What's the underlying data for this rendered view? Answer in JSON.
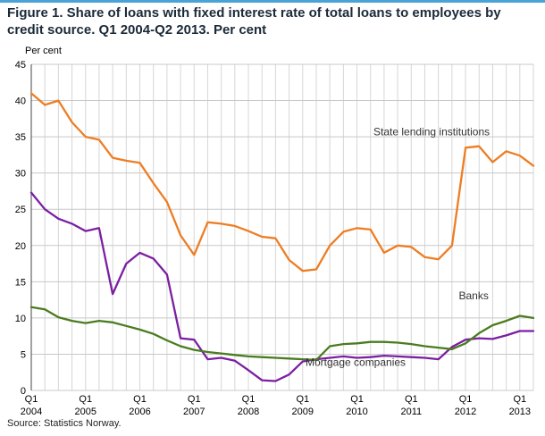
{
  "page": {
    "title": "Figure 1. Share of loans with fixed interest rate of total loans to employees by credit source. Q1 2004-Q2 2013. Per cent",
    "source": "Source: Statistics Norway."
  },
  "colors": {
    "accent_bar": "#4aa3d6",
    "title_text": "#1b2a38",
    "grid_vertical": "#d6d6d6",
    "grid_horizontal": "#c8c8c8",
    "axis": "#444444",
    "tick_text": "#000000",
    "annotation_text": "#333333"
  },
  "chart_data": {
    "type": "line",
    "title": "Figure 1. Share of loans with fixed interest rate of total loans to employees by credit source. Q1 2004-Q2 2013. Per cent",
    "ylabel": "Per cent",
    "ylim": [
      0,
      45
    ],
    "yticks": [
      0,
      5,
      10,
      15,
      20,
      25,
      30,
      35,
      40,
      45
    ],
    "grid": true,
    "n_points": 38,
    "x_description": "Quarterly, Q1 2004 through Q2 2013",
    "x_ticks": [
      {
        "index": 0,
        "quarter": "Q1",
        "year": "2004"
      },
      {
        "index": 4,
        "quarter": "Q1",
        "year": "2005"
      },
      {
        "index": 8,
        "quarter": "Q1",
        "year": "2006"
      },
      {
        "index": 12,
        "quarter": "Q1",
        "year": "2007"
      },
      {
        "index": 16,
        "quarter": "Q1",
        "year": "2008"
      },
      {
        "index": 20,
        "quarter": "Q1",
        "year": "2009"
      },
      {
        "index": 24,
        "quarter": "Q1",
        "year": "2010"
      },
      {
        "index": 28,
        "quarter": "Q1",
        "year": "2011"
      },
      {
        "index": 32,
        "quarter": "Q1",
        "year": "2012"
      },
      {
        "index": 36,
        "quarter": "Q1",
        "year": "2013"
      }
    ],
    "series": [
      {
        "name": "State lending institutions",
        "color": "#ee7d23",
        "values": [
          41.0,
          39.4,
          40.0,
          37.0,
          35.0,
          34.6,
          32.1,
          31.7,
          31.4,
          28.6,
          26.0,
          21.4,
          18.7,
          23.2,
          23.0,
          22.7,
          22.0,
          21.2,
          21.0,
          18.0,
          16.5,
          16.7,
          20.0,
          21.9,
          22.4,
          22.2,
          19.0,
          20.0,
          19.8,
          18.4,
          18.1,
          20.0,
          33.5,
          33.7,
          31.5,
          33.0,
          32.4,
          31.0
        ]
      },
      {
        "name": "Mortgage companies",
        "color": "#7b1fa2",
        "values": [
          27.3,
          25.0,
          23.7,
          23.0,
          22.0,
          22.4,
          13.3,
          17.5,
          19.0,
          18.2,
          16.0,
          7.2,
          7.0,
          4.3,
          4.5,
          4.1,
          2.8,
          1.4,
          1.3,
          2.2,
          4.0,
          4.3,
          4.5,
          4.7,
          4.5,
          4.6,
          4.8,
          4.7,
          4.6,
          4.5,
          4.3,
          6.0,
          7.0,
          7.2,
          7.1,
          7.6,
          8.2,
          8.2
        ]
      },
      {
        "name": "Banks",
        "color": "#4a7c1f",
        "values": [
          11.5,
          11.2,
          10.1,
          9.6,
          9.3,
          9.6,
          9.4,
          8.9,
          8.4,
          7.8,
          6.9,
          6.1,
          5.6,
          5.3,
          5.1,
          4.9,
          4.7,
          4.6,
          4.5,
          4.4,
          4.3,
          4.2,
          6.1,
          6.4,
          6.5,
          6.7,
          6.7,
          6.6,
          6.4,
          6.1,
          5.9,
          5.7,
          6.5,
          7.9,
          9.0,
          9.6,
          10.3,
          10.0
        ]
      }
    ],
    "annotations": [
      {
        "text": "State lending institutions",
        "x": 29.5,
        "y": 35.2
      },
      {
        "text": "Banks",
        "x": 32.6,
        "y": 12.6
      },
      {
        "text": "Mortgage companies",
        "x": 23.9,
        "y": 3.4
      }
    ]
  }
}
